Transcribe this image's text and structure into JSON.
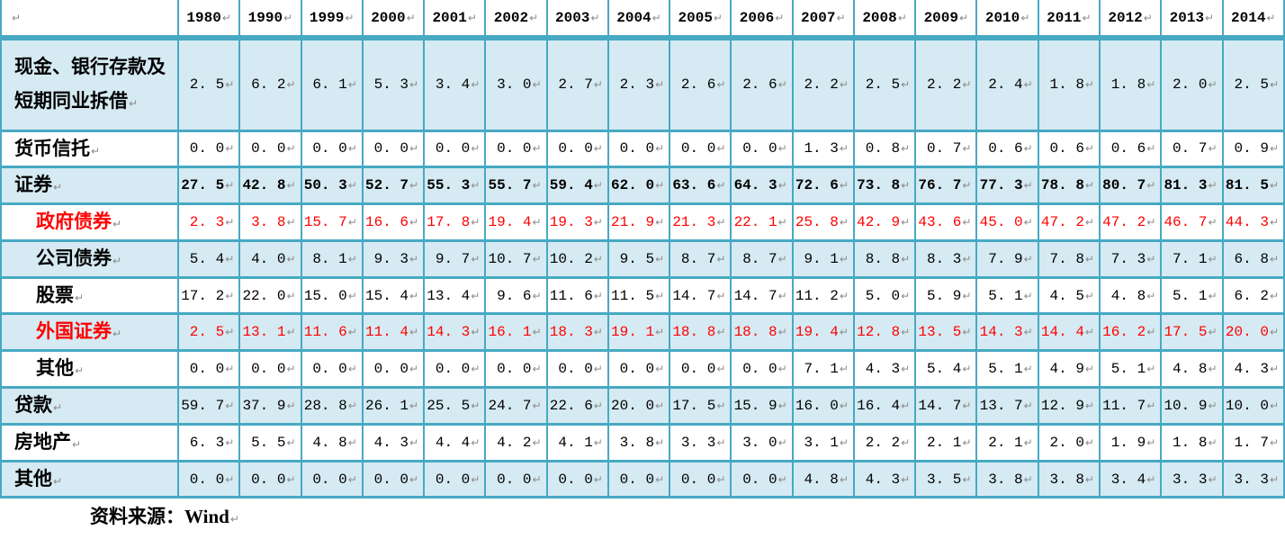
{
  "colors": {
    "table_border": "#47A9C3",
    "row_shading": "#D5EAF2",
    "highlight_red": "#FF0000",
    "mark_gray": "#8C8C8C"
  },
  "marks": {
    "cell_end_mark": "↵"
  },
  "table": {
    "corner_label": "",
    "years": [
      "1980",
      "1990",
      "1999",
      "2000",
      "2001",
      "2002",
      "2003",
      "2004",
      "2005",
      "2006",
      "2007",
      "2008",
      "2009",
      "2010",
      "2011",
      "2012",
      "2013",
      "2014"
    ],
    "rows": [
      {
        "label": "现金、银行存款及短期同业拆借",
        "sub": false,
        "red": false,
        "bold_values": false,
        "shaded": true,
        "values": [
          "2. 5",
          "6. 2",
          "6. 1",
          "5. 3",
          "3. 4",
          "3. 0",
          "2. 7",
          "2. 3",
          "2. 6",
          "2. 6",
          "2. 2",
          "2. 5",
          "2. 2",
          "2. 4",
          "1. 8",
          "1. 8",
          "2. 0",
          "2. 5"
        ]
      },
      {
        "label": "货币信托",
        "sub": false,
        "red": false,
        "bold_values": false,
        "shaded": false,
        "values": [
          "0. 0",
          "0. 0",
          "0. 0",
          "0. 0",
          "0. 0",
          "0. 0",
          "0. 0",
          "0. 0",
          "0. 0",
          "0. 0",
          "1. 3",
          "0. 8",
          "0. 7",
          "0. 6",
          "0. 6",
          "0. 6",
          "0. 7",
          "0. 9"
        ]
      },
      {
        "label": "证券",
        "sub": false,
        "red": false,
        "bold_values": true,
        "shaded": true,
        "values": [
          "27. 5",
          "42. 8",
          "50. 3",
          "52. 7",
          "55. 3",
          "55. 7",
          "59. 4",
          "62. 0",
          "63. 6",
          "64. 3",
          "72. 6",
          "73. 8",
          "76. 7",
          "77. 3",
          "78. 8",
          "80. 7",
          "81. 3",
          "81. 5"
        ]
      },
      {
        "label": "政府债券",
        "sub": true,
        "red": true,
        "bold_values": false,
        "shaded": false,
        "values": [
          "2. 3",
          "3. 8",
          "15. 7",
          "16. 6",
          "17. 8",
          "19. 4",
          "19. 3",
          "21. 9",
          "21. 3",
          "22. 1",
          "25. 8",
          "42. 9",
          "43. 6",
          "45. 0",
          "47. 2",
          "47. 2",
          "46. 7",
          "44. 3"
        ]
      },
      {
        "label": "公司债券",
        "sub": true,
        "red": false,
        "bold_values": false,
        "shaded": true,
        "values": [
          "5. 4",
          "4. 0",
          "8. 1",
          "9. 3",
          "9. 7",
          "10. 7",
          "10. 2",
          "9. 5",
          "8. 7",
          "8. 7",
          "9. 1",
          "8. 8",
          "8. 3",
          "7. 9",
          "7. 8",
          "7. 3",
          "7. 1",
          "6. 8"
        ]
      },
      {
        "label": "股票",
        "sub": true,
        "red": false,
        "bold_values": false,
        "shaded": false,
        "values": [
          "17. 2",
          "22. 0",
          "15. 0",
          "15. 4",
          "13. 4",
          "9. 6",
          "11. 6",
          "11. 5",
          "14. 7",
          "14. 7",
          "11. 2",
          "5. 0",
          "5. 9",
          "5. 1",
          "4. 5",
          "4. 8",
          "5. 1",
          "6. 2"
        ]
      },
      {
        "label": "外国证券",
        "sub": true,
        "red": true,
        "bold_values": false,
        "shaded": true,
        "values": [
          "2. 5",
          "13. 1",
          "11. 6",
          "11. 4",
          "14. 3",
          "16. 1",
          "18. 3",
          "19. 1",
          "18. 8",
          "18. 8",
          "19. 4",
          "12. 8",
          "13. 5",
          "14. 3",
          "14. 4",
          "16. 2",
          "17. 5",
          "20. 0"
        ]
      },
      {
        "label": "其他",
        "sub": true,
        "red": false,
        "bold_values": false,
        "shaded": false,
        "values": [
          "0. 0",
          "0. 0",
          "0. 0",
          "0. 0",
          "0. 0",
          "0. 0",
          "0. 0",
          "0. 0",
          "0. 0",
          "0. 0",
          "7. 1",
          "4. 3",
          "5. 4",
          "5. 1",
          "4. 9",
          "5. 1",
          "4. 8",
          "4. 3"
        ]
      },
      {
        "label": "贷款",
        "sub": false,
        "red": false,
        "bold_values": false,
        "shaded": true,
        "values": [
          "59. 7",
          "37. 9",
          "28. 8",
          "26. 1",
          "25. 5",
          "24. 7",
          "22. 6",
          "20. 0",
          "17. 5",
          "15. 9",
          "16. 0",
          "16. 4",
          "14. 7",
          "13. 7",
          "12. 9",
          "11. 7",
          "10. 9",
          "10. 0"
        ]
      },
      {
        "label": "房地产",
        "sub": false,
        "red": false,
        "bold_values": false,
        "shaded": false,
        "values": [
          "6. 3",
          "5. 5",
          "4. 8",
          "4. 3",
          "4. 4",
          "4. 2",
          "4. 1",
          "3. 8",
          "3. 3",
          "3. 0",
          "3. 1",
          "2. 2",
          "2. 1",
          "2. 1",
          "2. 0",
          "1. 9",
          "1. 8",
          "1. 7"
        ]
      },
      {
        "label": "其他",
        "sub": false,
        "red": false,
        "bold_values": false,
        "shaded": true,
        "values": [
          "0. 0",
          "0. 0",
          "0. 0",
          "0. 0",
          "0. 0",
          "0. 0",
          "0. 0",
          "0. 0",
          "0. 0",
          "0. 0",
          "4. 8",
          "4. 3",
          "3. 5",
          "3. 8",
          "3. 8",
          "3. 4",
          "3. 3",
          "3. 3"
        ]
      }
    ]
  },
  "footer": {
    "source_label": "资料来源：Wind"
  }
}
